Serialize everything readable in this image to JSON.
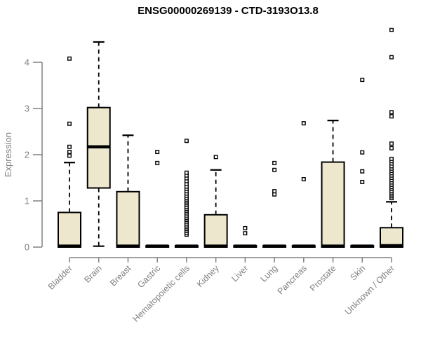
{
  "title": "ENSG00000269139 - CTD-3193O13.8",
  "colors": {
    "box_fill": "#EDE7CD",
    "box_border": "#000000",
    "median": "#000000",
    "whisker": "#000000",
    "outlier_fill": "#ffffff",
    "outlier_stroke": "#000000",
    "axis": "#808080",
    "title": "#000000",
    "background": "#ffffff"
  },
  "chart_data": {
    "type": "boxplot",
    "title": "ENSG00000269139 - CTD-3193O13.8",
    "xlabel": "",
    "ylabel": "Expression",
    "ylim": [
      0,
      4.8
    ],
    "yticks": [
      0,
      1,
      2,
      3,
      4
    ],
    "grid": "off",
    "legend": "none",
    "categories": [
      "Bladder",
      "Brain",
      "Breast",
      "Gastric",
      "Hematopoietic cells",
      "Kidney",
      "Liver",
      "Lung",
      "Pancreas",
      "Prostate",
      "Skin",
      "Unknown / Other"
    ],
    "series": [
      {
        "category": "Bladder",
        "q1": 0,
        "median": 0.02,
        "q3": 0.75,
        "whisker_low": 0,
        "whisker_high": 1.83,
        "outliers": [
          1.98,
          2.06,
          2.17,
          2.67,
          4.08
        ]
      },
      {
        "category": "Brain",
        "q1": 1.28,
        "median": 2.17,
        "q3": 3.02,
        "whisker_low": 0.02,
        "whisker_high": 4.44,
        "outliers": []
      },
      {
        "category": "Breast",
        "q1": 0,
        "median": 0.02,
        "q3": 1.2,
        "whisker_low": 0,
        "whisker_high": 2.42,
        "outliers": []
      },
      {
        "category": "Gastric",
        "q1": 0,
        "median": 0.02,
        "q3": 0.03,
        "whisker_low": 0,
        "whisker_high": 0.03,
        "outliers": [
          1.82,
          2.06
        ]
      },
      {
        "category": "Hematopoietic cells",
        "q1": 0,
        "median": 0.02,
        "q3": 0.03,
        "whisker_low": 0,
        "whisker_high": 0.03,
        "outliers": [
          0.27,
          0.31,
          0.35,
          0.39,
          0.43,
          0.47,
          0.51,
          0.55,
          0.59,
          0.63,
          0.67,
          0.71,
          0.75,
          0.79,
          0.83,
          0.87,
          0.91,
          0.95,
          0.99,
          1.03,
          1.07,
          1.11,
          1.16,
          1.21,
          1.26,
          1.31,
          1.37,
          1.43,
          1.49,
          1.55,
          1.61,
          2.3
        ]
      },
      {
        "category": "Kidney",
        "q1": 0,
        "median": 0.02,
        "q3": 0.7,
        "whisker_low": 0,
        "whisker_high": 1.67,
        "outliers": [
          1.95
        ]
      },
      {
        "category": "Liver",
        "q1": 0,
        "median": 0.02,
        "q3": 0.03,
        "whisker_low": 0,
        "whisker_high": 0.03,
        "outliers": [
          0.3,
          0.41
        ]
      },
      {
        "category": "Lung",
        "q1": 0,
        "median": 0.02,
        "q3": 0.03,
        "whisker_low": 0,
        "whisker_high": 0.03,
        "outliers": [
          1.14,
          1.21,
          1.67,
          1.82
        ]
      },
      {
        "category": "Pancreas",
        "q1": 0,
        "median": 0.02,
        "q3": 0.03,
        "whisker_low": 0,
        "whisker_high": 0.03,
        "outliers": [
          1.47,
          2.68
        ]
      },
      {
        "category": "Prostate",
        "q1": 0,
        "median": 0.02,
        "q3": 1.84,
        "whisker_low": 0,
        "whisker_high": 2.74,
        "outliers": []
      },
      {
        "category": "Skin",
        "q1": 0,
        "median": 0.02,
        "q3": 0.03,
        "whisker_low": 0,
        "whisker_high": 0.03,
        "outliers": [
          1.41,
          1.64,
          2.05,
          3.62
        ]
      },
      {
        "category": "Unknown / Other",
        "q1": 0,
        "median": 0.03,
        "q3": 0.42,
        "whisker_low": 0,
        "whisker_high": 0.98,
        "outliers": [
          1.06,
          1.1,
          1.14,
          1.18,
          1.22,
          1.26,
          1.3,
          1.35,
          1.4,
          1.45,
          1.5,
          1.55,
          1.6,
          1.65,
          1.7,
          1.75,
          1.81,
          1.86,
          1.91,
          2.14,
          2.24,
          2.83,
          2.92,
          4.11,
          4.7
        ]
      }
    ]
  }
}
